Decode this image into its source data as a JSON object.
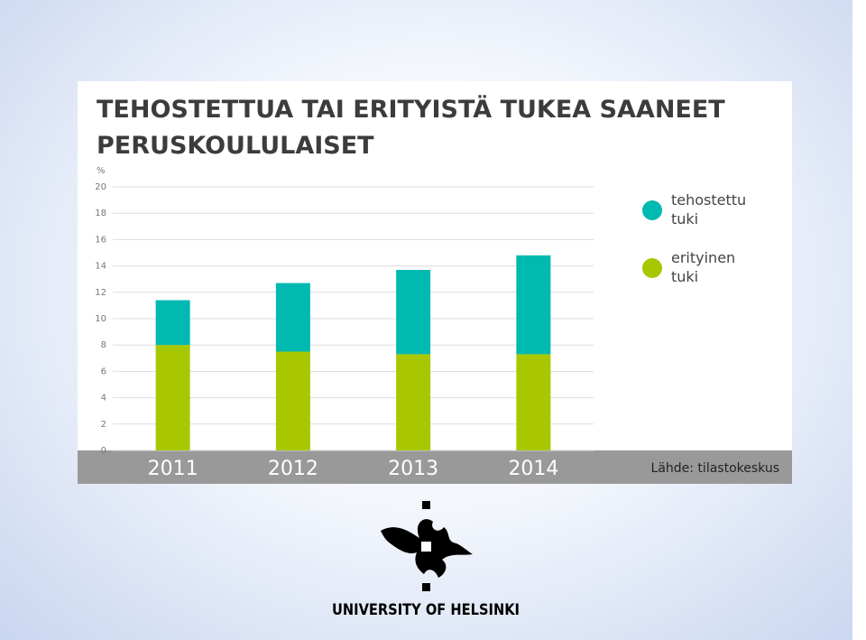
{
  "chart_data": {
    "type": "stacked_bar",
    "title": "TEHOSTETTUA TAI ERITYISTÄ TUKEA SAANEET PERUSKOULULAISET",
    "ylabel": "%",
    "categories": [
      "2011",
      "2012",
      "2013",
      "2014"
    ],
    "series": [
      {
        "name": "erityinen tuki",
        "color": "#a9c700",
        "values": [
          8.0,
          7.5,
          7.3,
          7.3
        ]
      },
      {
        "name": "tehostettu tuki",
        "color": "#00b9b1",
        "values": [
          3.4,
          5.2,
          6.4,
          7.5
        ]
      }
    ],
    "ylim": [
      0,
      20
    ],
    "yticks": [
      0,
      2,
      4,
      6,
      8,
      10,
      12,
      14,
      16,
      18,
      20
    ],
    "grid": true,
    "source": "Lähde: tilastokeskus"
  },
  "footer": {
    "logo_text": "UNIVERSITY OF HELSINKI"
  }
}
